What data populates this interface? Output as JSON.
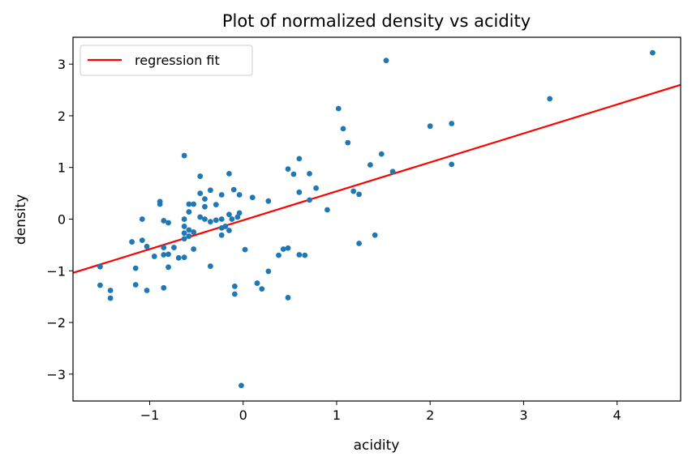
{
  "chart_data": {
    "type": "scatter",
    "title": "Plot of normalized density vs acidity",
    "xlabel": "acidity",
    "ylabel": "density",
    "xlim": [
      -1.82,
      4.68
    ],
    "ylim": [
      -3.52,
      3.52
    ],
    "xticks": [
      -1,
      0,
      1,
      2,
      3,
      4
    ],
    "xtick_labels": [
      "−1",
      "0",
      "1",
      "2",
      "3",
      "4"
    ],
    "yticks": [
      -3,
      -2,
      -1,
      0,
      1,
      2,
      3
    ],
    "ytick_labels": [
      "−3",
      "−2",
      "−1",
      "0",
      "1",
      "2",
      "3"
    ],
    "grid": false,
    "legend": {
      "position": "upper-left",
      "entries": [
        "regression fit"
      ]
    },
    "colors": {
      "points": "#1f77b4",
      "fit": "#ff0000"
    },
    "series": [
      {
        "kind": "scatter",
        "points": [
          [
            -1.53,
            -0.92
          ],
          [
            -1.53,
            -1.28
          ],
          [
            -1.42,
            -1.38
          ],
          [
            -1.42,
            -1.53
          ],
          [
            -1.19,
            -0.44
          ],
          [
            -1.15,
            -0.95
          ],
          [
            -1.15,
            -1.27
          ],
          [
            -1.08,
            0.0
          ],
          [
            -1.08,
            -0.41
          ],
          [
            -1.03,
            -0.53
          ],
          [
            -1.03,
            -1.38
          ],
          [
            -0.95,
            -0.72
          ],
          [
            -0.89,
            0.34
          ],
          [
            -0.89,
            0.29
          ],
          [
            -0.85,
            -0.03
          ],
          [
            -0.85,
            -0.55
          ],
          [
            -0.85,
            -0.69
          ],
          [
            -0.85,
            -1.33
          ],
          [
            -0.8,
            -0.07
          ],
          [
            -0.8,
            -0.68
          ],
          [
            -0.8,
            -0.93
          ],
          [
            -0.74,
            -0.55
          ],
          [
            -0.69,
            -0.75
          ],
          [
            -0.63,
            1.23
          ],
          [
            -0.63,
            0.0
          ],
          [
            -0.63,
            -0.14
          ],
          [
            -0.63,
            -0.27
          ],
          [
            -0.63,
            -0.38
          ],
          [
            -0.63,
            -0.74
          ],
          [
            -0.58,
            0.29
          ],
          [
            -0.58,
            0.14
          ],
          [
            -0.58,
            -0.21
          ],
          [
            -0.58,
            -0.33
          ],
          [
            -0.53,
            0.29
          ],
          [
            -0.53,
            -0.25
          ],
          [
            -0.53,
            -0.58
          ],
          [
            -0.46,
            0.83
          ],
          [
            -0.46,
            0.5
          ],
          [
            -0.46,
            0.04
          ],
          [
            -0.41,
            0.39
          ],
          [
            -0.41,
            0.24
          ],
          [
            -0.41,
            0.0
          ],
          [
            -0.35,
            0.56
          ],
          [
            -0.35,
            -0.05
          ],
          [
            -0.35,
            -0.91
          ],
          [
            -0.29,
            0.28
          ],
          [
            -0.29,
            -0.02
          ],
          [
            -0.23,
            0.47
          ],
          [
            -0.23,
            0.0
          ],
          [
            -0.23,
            -0.17
          ],
          [
            -0.23,
            -0.31
          ],
          [
            -0.19,
            -0.14
          ],
          [
            -0.15,
            0.88
          ],
          [
            -0.15,
            0.09
          ],
          [
            -0.15,
            -0.22
          ],
          [
            -0.12,
            0.0
          ],
          [
            -0.1,
            0.57
          ],
          [
            -0.09,
            -1.3
          ],
          [
            -0.09,
            -1.45
          ],
          [
            -0.06,
            0.04
          ],
          [
            -0.04,
            0.47
          ],
          [
            -0.04,
            0.12
          ],
          [
            -0.02,
            -3.22
          ],
          [
            0.02,
            -0.59
          ],
          [
            0.1,
            0.42
          ],
          [
            0.15,
            -1.24
          ],
          [
            0.2,
            -1.35
          ],
          [
            0.27,
            0.35
          ],
          [
            0.27,
            -1.01
          ],
          [
            0.38,
            -0.7
          ],
          [
            0.43,
            -0.58
          ],
          [
            0.48,
            0.97
          ],
          [
            0.48,
            -0.56
          ],
          [
            0.48,
            -1.52
          ],
          [
            0.54,
            0.87
          ],
          [
            0.6,
            1.17
          ],
          [
            0.6,
            0.52
          ],
          [
            0.6,
            -0.69
          ],
          [
            0.66,
            -0.7
          ],
          [
            0.71,
            0.88
          ],
          [
            0.71,
            0.37
          ],
          [
            0.78,
            0.6
          ],
          [
            0.9,
            0.18
          ],
          [
            1.02,
            2.14
          ],
          [
            1.07,
            1.75
          ],
          [
            1.12,
            1.48
          ],
          [
            1.18,
            0.54
          ],
          [
            1.24,
            0.48
          ],
          [
            1.24,
            -0.47
          ],
          [
            1.36,
            1.05
          ],
          [
            1.41,
            -0.31
          ],
          [
            1.48,
            1.26
          ],
          [
            1.53,
            3.07
          ],
          [
            1.6,
            0.92
          ],
          [
            2.0,
            1.8
          ],
          [
            2.23,
            1.85
          ],
          [
            2.23,
            1.06
          ],
          [
            3.28,
            2.33
          ],
          [
            4.38,
            3.22
          ]
        ]
      },
      {
        "kind": "line",
        "name": "regression fit",
        "x": [
          -1.82,
          4.68
        ],
        "y": [
          -1.04,
          2.6
        ]
      }
    ]
  }
}
